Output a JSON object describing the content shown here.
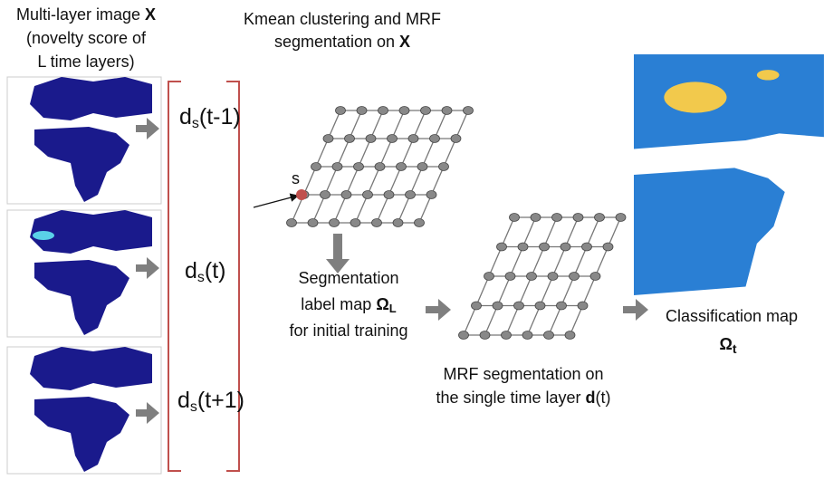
{
  "input": {
    "lines": [
      "Multi-layer image",
      "(novelty score of",
      "L time layers)"
    ],
    "symbol": "X"
  },
  "layers": [
    {
      "base": "d",
      "sub": "s",
      "arg": "(t-1)"
    },
    {
      "base": "d",
      "sub": "s",
      "arg": "(t)"
    },
    {
      "base": "d",
      "sub": "s",
      "arg": "(t+1)"
    }
  ],
  "clustering": {
    "lines": [
      "Kmean clustering and MRF",
      "segmentation on"
    ],
    "symbol": "X"
  },
  "node_label": "s",
  "label_map": {
    "lines": [
      "Segmentation",
      "label map",
      "for initial training"
    ],
    "symbol": "Ω",
    "sub": "L"
  },
  "mrf": {
    "lines": [
      "MRF  segmentation on",
      "the single time layer"
    ],
    "symbol": "d",
    "arg": "(t)"
  },
  "output": {
    "text": "Classification map",
    "symbol": "Ω",
    "sub": "t"
  }
}
